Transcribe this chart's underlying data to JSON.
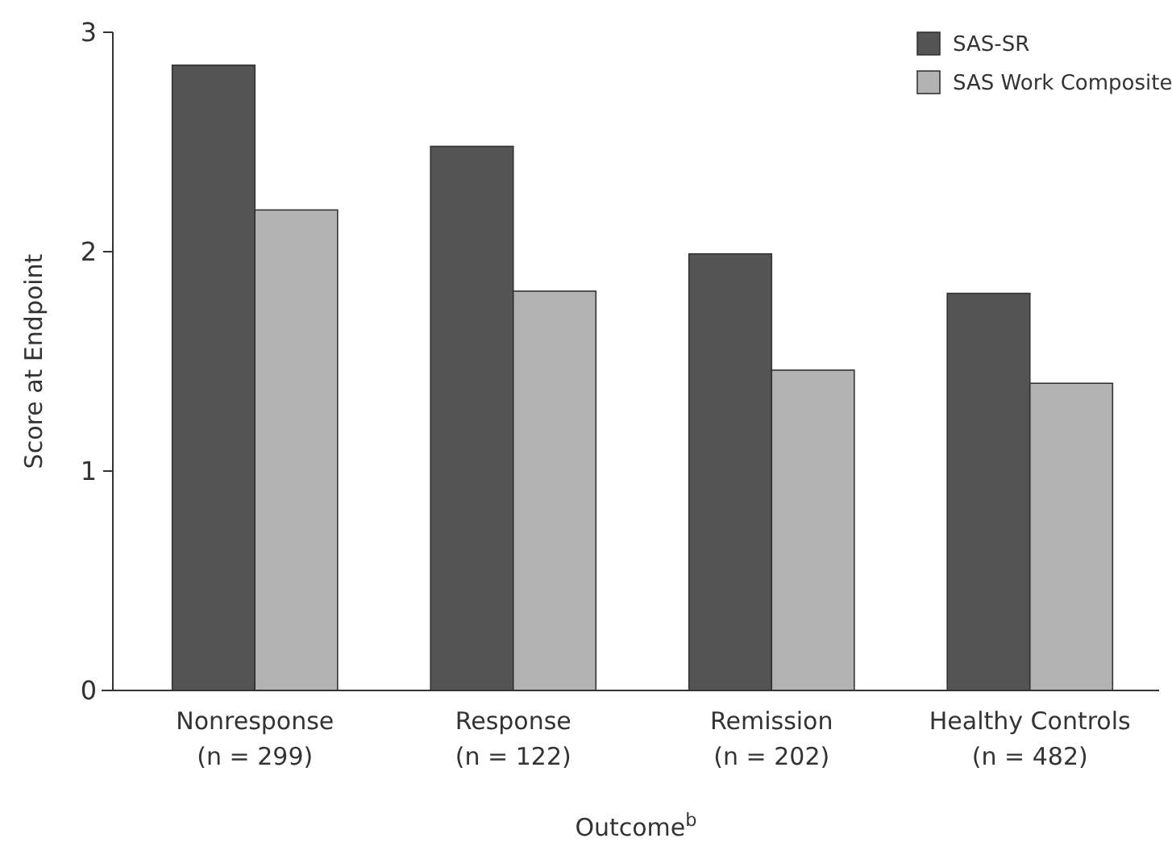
{
  "chart_data": {
    "type": "bar",
    "xlabel": "Outcome$^{b}$",
    "ylabel": "Score at Endpoint",
    "categories": [
      "Nonresponse\n(n = 299)",
      "Response\n(n = 122)",
      "Remission\n(n = 202)",
      "Healthy Controls\n(n = 482)"
    ],
    "series": [
      {
        "name": "SAS-SR",
        "color": "#545454",
        "values": [
          2.85,
          2.48,
          1.99,
          1.81
        ]
      },
      {
        "name": "SAS Work Composite",
        "color": "#b3b3b3",
        "values": [
          2.19,
          1.82,
          1.46,
          1.4
        ]
      }
    ],
    "ylim": [
      0,
      3
    ],
    "yticks": [
      0,
      1,
      2,
      3
    ],
    "grid": false,
    "legend": "top right"
  }
}
